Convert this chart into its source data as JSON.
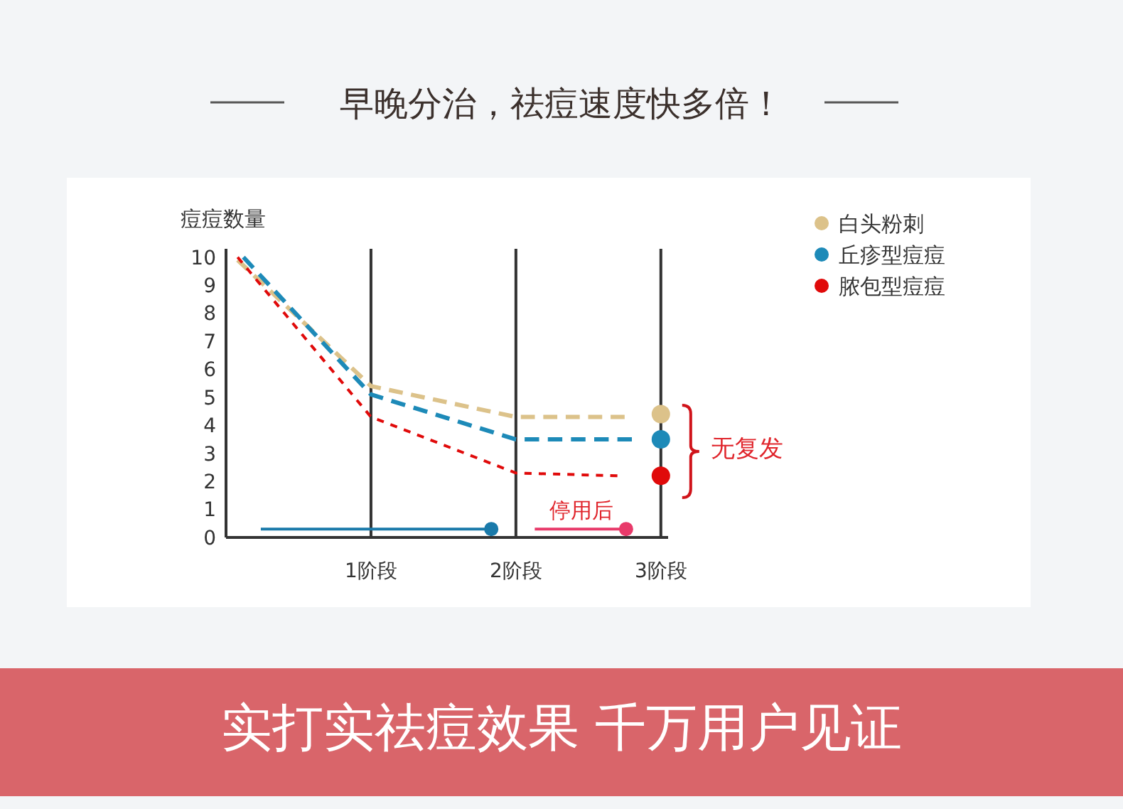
{
  "chart_data": {
    "type": "line",
    "title": "早晚分治，祛痘速度快多倍！",
    "ylabel": "痘痘数量",
    "xlim": [
      0,
      3.05
    ],
    "ylim": [
      0,
      10.3
    ],
    "xticks": [
      {
        "value": 1,
        "label": "1阶段"
      },
      {
        "value": 2,
        "label": "2阶段"
      },
      {
        "value": 3,
        "label": "3阶段"
      }
    ],
    "yticks": [
      0,
      1,
      2,
      3,
      4,
      5,
      6,
      7,
      8,
      9,
      10
    ],
    "grid": "x",
    "legend": "top right",
    "series": [
      {
        "name": "白头粉刺",
        "color": "#dcc28a",
        "line_style": "dashed",
        "x": [
          0.08,
          1,
          2,
          2.75
        ],
        "values": [
          9.9,
          5.4,
          4.3,
          4.3
        ]
      },
      {
        "name": "丘疹型痘痘",
        "color": "#1d8ab8",
        "line_style": "dashed",
        "x": [
          0.12,
          1,
          2,
          2.8
        ],
        "values": [
          10,
          5.1,
          3.5,
          3.5
        ]
      },
      {
        "name": "脓包型痘痘",
        "color": "#e00a0a",
        "line_style": "dotted",
        "x": [
          0.08,
          1,
          2,
          2.7
        ],
        "values": [
          10,
          4.3,
          2.3,
          2.2
        ]
      },
      {
        "type": "scatter",
        "x": [
          3,
          3,
          3
        ],
        "values": [
          4.4,
          3.5,
          2.2
        ],
        "colors": [
          "#dcc28a",
          "#1d8ab8",
          "#e00a0a"
        ]
      },
      {
        "color": "#1a7aaa",
        "line_style": "solid",
        "x": [
          0.24,
          1.83
        ],
        "values": [
          0.3,
          0.3
        ]
      },
      {
        "color": "#e83a6a",
        "line_style": "solid",
        "x": [
          2.13,
          2.76
        ],
        "values": [
          0.3,
          0.3
        ]
      }
    ],
    "annotations": [
      {
        "text": "无复发",
        "x": 3,
        "y": 3.3
      },
      {
        "text": "停用后",
        "x": 2.45,
        "y": 0.3
      },
      "实打实祛痘效果 千万用户见证"
    ]
  }
}
